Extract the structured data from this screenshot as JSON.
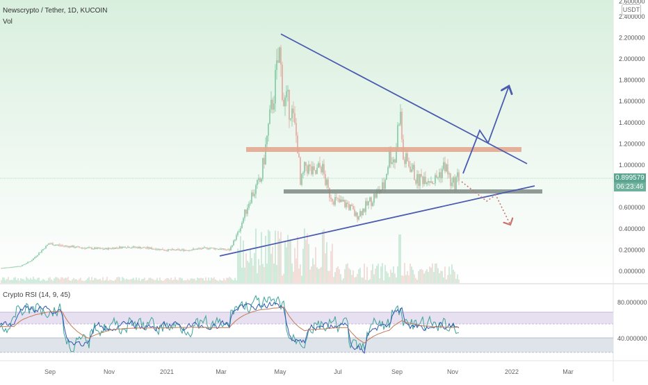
{
  "header": {
    "title": "Newscrypto / Tether, 1D, KUCOIN",
    "vol_label": "Vol"
  },
  "currency_badge": "USDT",
  "price_axis": {
    "labels": [
      "2.400000",
      "2.200000",
      "2.000000",
      "1.800000",
      "1.600000",
      "1.400000",
      "1.200000",
      "1.000000",
      "0.600000",
      "0.400000",
      "0.200000",
      "0.000000"
    ],
    "top_partial_label": "2.600000"
  },
  "current_price": {
    "value": "0.899579",
    "countdown": "06:23:46",
    "color": "#5aa58f"
  },
  "rsi": {
    "label": "Crypto RSI (14, 9, 45)",
    "axis_labels": [
      "80.000000",
      "40.000000"
    ]
  },
  "time_axis": {
    "labels": [
      "Sep",
      "Nov",
      "2021",
      "Mar",
      "May",
      "Jul",
      "Sep",
      "Nov",
      "2022",
      "Mar"
    ]
  },
  "colors": {
    "price_bg_top": "#d7eedc",
    "price_bg_bottom": "#ffffff",
    "trendline": "#4a5bb0",
    "resistance_zone": "#e2a78f",
    "support_zone": "#7f8a84",
    "candle_up": "#7fc9a2",
    "candle_down": "#e4a79c",
    "rsi_overbought_band": "#e7e0f1",
    "rsi_oversold_band": "#dfe3ea",
    "rsi_line_teal": "#3aa39a",
    "rsi_line_blue": "#2f56b0",
    "rsi_line_brown": "#c47a55",
    "projection_dots": "#c9736c"
  },
  "chart_data": {
    "type": "candlestick",
    "symbol": "Newscrypto / Tether",
    "interval": "1D",
    "exchange": "KUCOIN",
    "x_labels": [
      "Sep",
      "Nov",
      "2021",
      "Mar",
      "May",
      "Jul",
      "Sep",
      "Nov",
      "2022",
      "Mar"
    ],
    "approx_close_series": [
      0.02,
      0.05,
      0.25,
      0.27,
      0.22,
      0.21,
      0.22,
      0.2,
      0.19,
      0.18,
      0.2,
      0.22,
      0.6,
      2.1,
      1.8,
      1.3,
      1.0,
      0.9,
      0.8,
      0.62,
      0.55,
      0.7,
      1.0,
      1.5,
      1.0,
      0.85,
      0.9,
      0.95,
      0.9
    ],
    "current_price": 0.899579,
    "ylim": [
      0.0,
      2.6
    ]
  }
}
